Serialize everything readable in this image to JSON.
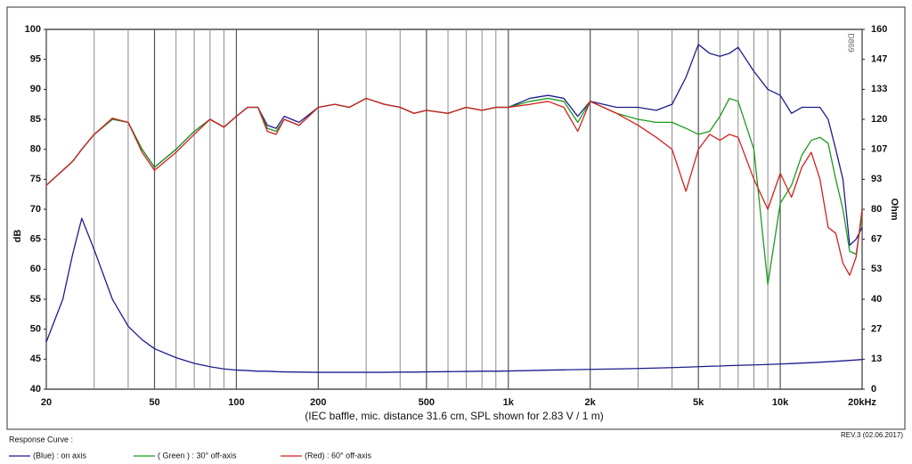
{
  "chart_data": {
    "type": "line",
    "x_title": "(IEC baffle, mic. distance 31.6 cm, SPL shown for 2.83 V / 1 m)",
    "y_title": "dB",
    "y2_title": "Ohm",
    "legend_title": "Response Curve :",
    "revision": "REV.3 (02.06.2017)",
    "watermark": "D869",
    "xscale": "log",
    "grid": "x",
    "xlim": [
      20,
      20000
    ],
    "xticks": [
      20,
      50,
      100,
      200,
      500,
      {
        "value": 1000,
        "label": "1k"
      },
      {
        "value": 2000,
        "label": "2k"
      },
      {
        "value": 5000,
        "label": "5k"
      },
      {
        "value": 10000,
        "label": "10k"
      },
      {
        "value": 20000,
        "label": "20kHz"
      }
    ],
    "ylim": [
      40,
      100
    ],
    "yticks": [
      40,
      45,
      50,
      55,
      60,
      65,
      70,
      75,
      80,
      85,
      90,
      95,
      100
    ],
    "y2lim": [
      0,
      160
    ],
    "y2ticks": [
      0,
      {
        "value": 13.33,
        "label": "13"
      },
      {
        "value": 26.67,
        "label": "27"
      },
      40,
      {
        "value": 53.33,
        "label": "53"
      },
      {
        "value": 66.67,
        "label": "67"
      },
      80,
      {
        "value": 93.33,
        "label": "93"
      },
      {
        "value": 106.67,
        "label": "107"
      },
      120,
      {
        "value": 133.33,
        "label": "133"
      },
      {
        "value": 146.67,
        "label": "147"
      },
      160
    ],
    "x": [
      20,
      23,
      25,
      27,
      30,
      35,
      40,
      45,
      50,
      60,
      70,
      80,
      90,
      100,
      110,
      120,
      130,
      140,
      150,
      170,
      200,
      230,
      260,
      300,
      350,
      400,
      450,
      500,
      600,
      700,
      800,
      900,
      1000,
      1200,
      1400,
      1600,
      1800,
      2000,
      2500,
      3000,
      3500,
      4000,
      4500,
      5000,
      5500,
      6000,
      6500,
      7000,
      8000,
      9000,
      10000,
      11000,
      12000,
      13000,
      14000,
      15000,
      16000,
      17000,
      18000,
      19000,
      20000
    ],
    "series": [
      {
        "name": "(Blue) : on axis",
        "color": "#1c1c8e",
        "values": [
          74,
          76.5,
          78,
          80,
          82.5,
          85,
          84.5,
          80,
          77,
          80,
          83,
          85,
          83.7,
          85.5,
          87,
          87,
          84,
          83.5,
          85.5,
          84.5,
          87,
          87.5,
          87,
          88.5,
          87.5,
          87,
          86,
          86.5,
          86,
          87,
          86.5,
          87,
          87,
          88.5,
          89,
          88.5,
          85.5,
          88,
          87,
          87,
          86.5,
          87.5,
          92,
          97.5,
          96,
          95.5,
          96,
          97,
          93,
          90,
          89,
          86,
          87,
          87,
          87,
          85,
          80,
          75,
          64,
          65,
          67
        ]
      },
      {
        "name": "( Green ) : 30° off-axis",
        "color": "#1e9a1e",
        "values": [
          74,
          76.5,
          78,
          80,
          82.5,
          85,
          84.5,
          80,
          77,
          80,
          83,
          85,
          83.7,
          85.5,
          87,
          87,
          83.5,
          83,
          85,
          84,
          87,
          87.5,
          87,
          88.5,
          87.5,
          87,
          86,
          86.5,
          86,
          87,
          86.5,
          87,
          87,
          88,
          88.5,
          88,
          84.5,
          88,
          86,
          85,
          84.5,
          84.5,
          83.5,
          82.5,
          83,
          85.5,
          88.5,
          88,
          80,
          57.5,
          71,
          74,
          79,
          81.5,
          82,
          81,
          75,
          70,
          63,
          62.5,
          69
        ]
      },
      {
        "name": "(Red) : 60° off-axis",
        "color": "#d42020",
        "values": [
          74,
          76.5,
          78,
          80,
          82.5,
          85.2,
          84.5,
          79.5,
          76.5,
          79.5,
          82.5,
          85,
          83.7,
          85.5,
          87,
          87,
          83,
          82.5,
          85,
          84,
          87,
          87.5,
          87,
          88.5,
          87.5,
          87,
          86,
          86.5,
          86,
          87,
          86.5,
          87,
          87,
          87.5,
          88,
          87,
          83,
          88,
          86,
          84,
          82,
          80,
          73,
          80,
          82.5,
          81.5,
          82.5,
          82,
          75,
          70,
          76,
          72,
          77,
          79.5,
          75,
          67,
          66,
          61,
          59,
          62,
          70
        ]
      },
      {
        "color": "#1c1c8e",
        "axis": "y2",
        "values": [
          21,
          40,
          60,
          76,
          62,
          40,
          28,
          22,
          18,
          14,
          11.5,
          10,
          9,
          8.5,
          8.3,
          8,
          8,
          7.8,
          7.7,
          7.6,
          7.5,
          7.5,
          7.5,
          7.5,
          7.5,
          7.6,
          7.6,
          7.7,
          7.8,
          7.9,
          8,
          8,
          8.1,
          8.3,
          8.5,
          8.6,
          8.7,
          8.8,
          9,
          9.2,
          9.4,
          9.6,
          9.8,
          10,
          10.2,
          10.3,
          10.5,
          10.6,
          10.8,
          11,
          11.2,
          11.4,
          11.6,
          11.8,
          12,
          12.2,
          12.4,
          12.6,
          12.8,
          13,
          13.2
        ]
      }
    ]
  }
}
